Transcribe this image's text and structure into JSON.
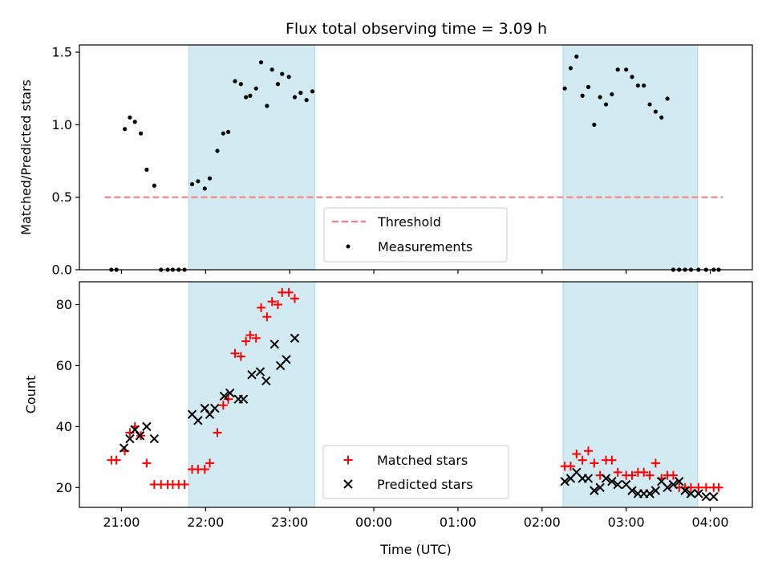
{
  "chart_data": {
    "type": "scatter",
    "title": "Flux total observing time = 3.09 h",
    "xlabel": "Time (UTC)",
    "x_ticks": [
      "21:00",
      "22:00",
      "23:00",
      "00:00",
      "01:00",
      "02:00",
      "03:00",
      "04:00"
    ],
    "x_tick_hours": [
      0,
      1,
      2,
      3,
      4,
      5,
      6,
      7
    ],
    "x_reference": "21:00 UTC",
    "xlim_hours": [
      -0.5,
      7.5
    ],
    "shaded_intervals_hours": [
      [
        0.8,
        2.3
      ],
      [
        5.25,
        6.85
      ]
    ],
    "shade_color": "#add8e6",
    "panels": [
      {
        "id": "ratio",
        "ylabel": "Matched/Predicted stars",
        "ylim": [
          0,
          1.55
        ],
        "y_ticks": [
          0.0,
          0.5,
          1.0,
          1.5
        ],
        "y_tick_labels": [
          "0.0",
          "0.5",
          "1.0",
          "1.5"
        ],
        "threshold": {
          "name": "Threshold",
          "value": 0.5,
          "x_range_hours": [
            -0.2,
            7.15
          ],
          "color": "#ff7f7f"
        },
        "series": [
          {
            "name": "Measurements",
            "marker": "dot",
            "color": "#000000",
            "x_hours": [
              -0.12,
              -0.06,
              0.04,
              0.1,
              0.16,
              0.23,
              0.3,
              0.39,
              0.47,
              0.55,
              0.61,
              0.68,
              0.75,
              0.84,
              0.91,
              0.99,
              1.05,
              1.14,
              1.21,
              1.27,
              1.35,
              1.42,
              1.48,
              1.53,
              1.6,
              1.66,
              1.73,
              1.79,
              1.86,
              1.91,
              1.99,
              2.06,
              2.13,
              2.2,
              2.27,
              5.27,
              5.34,
              5.41,
              5.48,
              5.55,
              5.62,
              5.69,
              5.76,
              5.83,
              5.9,
              6.0,
              6.07,
              6.14,
              6.21,
              6.28,
              6.35,
              6.42,
              6.49,
              6.56,
              6.63,
              6.7,
              6.77,
              6.86,
              6.95,
              7.04,
              7.1
            ],
            "values": [
              0.0,
              0.0,
              0.97,
              1.05,
              1.02,
              0.94,
              0.69,
              0.58,
              0.0,
              0.0,
              0.0,
              0.0,
              0.0,
              0.59,
              0.61,
              0.56,
              0.63,
              0.82,
              0.94,
              0.95,
              1.3,
              1.28,
              1.19,
              1.2,
              1.25,
              1.43,
              1.13,
              1.38,
              1.28,
              1.35,
              1.33,
              1.19,
              1.22,
              1.17,
              1.23,
              1.25,
              1.39,
              1.47,
              1.2,
              1.26,
              1.0,
              1.19,
              1.14,
              1.21,
              1.38,
              1.38,
              1.33,
              1.27,
              1.27,
              1.14,
              1.09,
              1.05,
              1.18,
              0.0,
              0.0,
              0.0,
              0.0,
              0.0,
              0.0,
              0.0,
              0.0
            ]
          }
        ],
        "legend": {
          "position": "lower center",
          "entries": [
            "Threshold",
            "Measurements"
          ]
        }
      },
      {
        "id": "counts",
        "ylabel": "Count",
        "ylim": [
          13.5,
          87.5
        ],
        "y_ticks": [
          20,
          40,
          60,
          80
        ],
        "series": [
          {
            "name": "Matched stars",
            "marker": "plus",
            "color": "#ff0000",
            "x_hours": [
              -0.12,
              -0.06,
              0.04,
              0.1,
              0.16,
              0.23,
              0.3,
              0.39,
              0.47,
              0.55,
              0.61,
              0.68,
              0.75,
              0.84,
              0.91,
              0.99,
              1.05,
              1.14,
              1.21,
              1.27,
              1.35,
              1.42,
              1.48,
              1.53,
              1.6,
              1.66,
              1.73,
              1.79,
              1.86,
              1.91,
              1.99,
              2.06,
              5.27,
              5.34,
              5.41,
              5.48,
              5.55,
              5.62,
              5.69,
              5.76,
              5.83,
              5.9,
              6.0,
              6.07,
              6.14,
              6.21,
              6.28,
              6.35,
              6.42,
              6.49,
              6.56,
              6.63,
              6.7,
              6.77,
              6.86,
              6.95,
              7.04,
              7.1
            ],
            "values": [
              29,
              29,
              32,
              38,
              40,
              37,
              28,
              21,
              21,
              21,
              21,
              21,
              21,
              26,
              26,
              26,
              28,
              38,
              47,
              49,
              64,
              63,
              68,
              70,
              69,
              79,
              76,
              81,
              80,
              84,
              84,
              82,
              27,
              27,
              31,
              29,
              32,
              28,
              24,
              29,
              29,
              25,
              24,
              24,
              25,
              25,
              24,
              28,
              23,
              24,
              24,
              20,
              20,
              20,
              20,
              20,
              20,
              20
            ],
            "matched_count": 58
          },
          {
            "name": "Predicted stars",
            "marker": "x",
            "color": "#000000",
            "x_hours": [
              0.03,
              0.1,
              0.16,
              0.22,
              0.3,
              0.39,
              0.84,
              0.91,
              0.99,
              1.05,
              1.11,
              1.22,
              1.29,
              1.39,
              1.45,
              1.55,
              1.65,
              1.72,
              1.82,
              1.89,
              1.96,
              2.06,
              5.27,
              5.34,
              5.41,
              5.48,
              5.55,
              5.62,
              5.69,
              5.76,
              5.83,
              5.9,
              6.0,
              6.07,
              6.14,
              6.21,
              6.28,
              6.35,
              6.42,
              6.49,
              6.56,
              6.63,
              6.7,
              6.77,
              6.86,
              6.95,
              7.04
            ],
            "values": [
              33,
              36,
              39,
              37,
              40,
              36,
              44,
              42,
              46,
              44,
              46,
              50,
              51,
              49,
              49,
              57,
              58,
              55,
              67,
              60,
              62,
              69,
              22,
              23,
              25,
              23,
              23,
              19,
              20,
              23,
              22,
              21,
              21,
              19,
              18,
              18,
              18,
              19,
              22,
              20,
              21,
              22,
              19,
              18,
              18,
              17,
              17
            ]
          }
        ],
        "legend": {
          "position": "lower center",
          "entries": [
            "Matched stars",
            "Predicted stars"
          ]
        }
      }
    ],
    "grid": false
  }
}
